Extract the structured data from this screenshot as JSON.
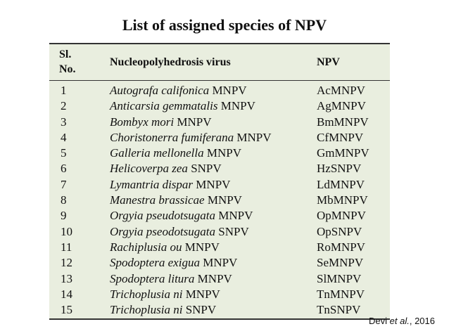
{
  "title": "List of assigned species of NPV",
  "table": {
    "headers": {
      "sl_line1": "Sl.",
      "sl_line2": "No.",
      "virus": "Nucleopolyhedrosis virus",
      "npv": "NPV"
    },
    "rows": [
      {
        "no": "1",
        "species": "Autografa califonica",
        "type": "MNPV",
        "abbr": "AcMNPV"
      },
      {
        "no": "2",
        "species": "Anticarsia gemmatalis",
        "type": "MNPV",
        "abbr": "AgMNPV"
      },
      {
        "no": "3",
        "species": "Bombyx mori",
        "type": " MNPV",
        "abbr": "BmMNPV"
      },
      {
        "no": "4",
        "species": "Choristonerra fumiferana",
        "type": "MNPV",
        "abbr": "CfMNPV"
      },
      {
        "no": "5",
        "species": "Galleria mellonella",
        "type": "MNPV",
        "abbr": "GmMNPV"
      },
      {
        "no": "6",
        "species": "Helicoverpa zea",
        "type": "SNPV",
        "abbr": "HzSNPV"
      },
      {
        "no": "7",
        "species": "Lymantria dispar",
        "type": "MNPV",
        "abbr": "LdMNPV"
      },
      {
        "no": "8",
        "species": "Manestra brassicae",
        "type": "MNPV",
        "abbr": "MbMNPV"
      },
      {
        "no": "9",
        "species": "Orgyia pseudotsugata",
        "type": "MNPV",
        "abbr": "OpMNPV"
      },
      {
        "no": "10",
        "species": "Orgyia pseodotsugata",
        "type": "SNPV",
        "abbr": "OpSNPV"
      },
      {
        "no": "11",
        "species": "Rachiplusia ou",
        "type": "MNPV",
        "abbr": "RoMNPV"
      },
      {
        "no": "12",
        "species": "Spodoptera exigua",
        "type": "MNPV",
        "abbr": "SeMNPV"
      },
      {
        "no": "13",
        "species": "Spodoptera litura",
        "type": "MNPV",
        "abbr": "SlMNPV"
      },
      {
        "no": "14",
        "species": "Trichoplusia ni",
        "type": "MNPV",
        "abbr": "TnMNPV"
      },
      {
        "no": "15",
        "species": "Trichoplusia ni",
        "type": "SNPV",
        "abbr": "TnSNPV"
      }
    ]
  },
  "citation": {
    "author": "Devi ",
    "etal": "et al.",
    "rest": ", 2016"
  }
}
